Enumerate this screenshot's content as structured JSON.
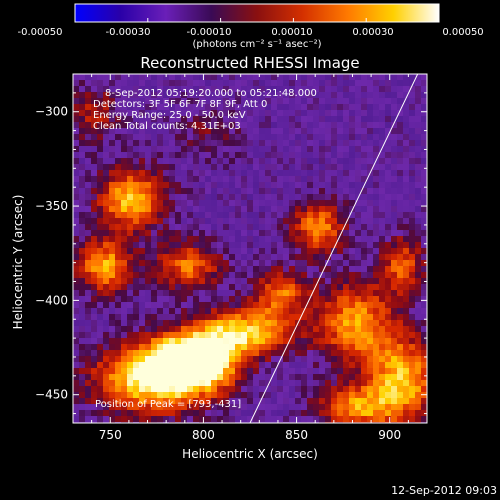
{
  "chart_data": {
    "type": "heatmap",
    "title": "Reconstructed RHESSI Image",
    "xlabel": "Heliocentric X (arcsec)",
    "ylabel": "Heliocentric Y (arcsec)",
    "xlim": [
      730,
      920
    ],
    "ylim": [
      -465,
      -280
    ],
    "xticks": [
      750,
      800,
      850,
      900
    ],
    "yticks": [
      -300,
      -350,
      -400,
      -450
    ],
    "colorbar": {
      "range": [
        -0.0005,
        0.0005
      ],
      "ticks": [
        "-0.00050",
        "-0.00030",
        "-0.00010",
        "0.00010",
        "0.00030",
        "0.00050"
      ],
      "units_label": "(photons cm⁻² s⁻¹ asec⁻²)",
      "colormap": [
        "#0000ff",
        "#2a00a8",
        "#6a1fb8",
        "#3a0a55",
        "#8a1010",
        "#d43000",
        "#ff7a00",
        "#ffd000",
        "#ffffff"
      ]
    },
    "info_lines": [
      "8-Sep-2012 05:19:20.000 to 05:21:48.000",
      "Detectors: 3F 5F 6F 7F 8F 9F, Att 0",
      "Energy Range: 25.0 - 50.0 keV",
      "Clean    Total counts: 4.31E+03"
    ],
    "peak_label": "Position of Peak = [793,-431]",
    "peak": {
      "x": 793,
      "y": -431
    },
    "limb_line": [
      [
        825,
        -465
      ],
      [
        915,
        -280
      ]
    ],
    "bright_regions": [
      {
        "x": 793,
        "y": -431,
        "intensity": 1.0,
        "rx": 22,
        "ry": 14
      },
      {
        "x": 770,
        "y": -440,
        "intensity": 0.7,
        "rx": 30,
        "ry": 18
      },
      {
        "x": 820,
        "y": -415,
        "intensity": 0.65,
        "rx": 25,
        "ry": 12
      },
      {
        "x": 760,
        "y": -345,
        "intensity": 0.6,
        "rx": 18,
        "ry": 16
      },
      {
        "x": 745,
        "y": -380,
        "intensity": 0.55,
        "rx": 15,
        "ry": 14
      },
      {
        "x": 790,
        "y": -380,
        "intensity": 0.45,
        "rx": 18,
        "ry": 12
      },
      {
        "x": 860,
        "y": -360,
        "intensity": 0.5,
        "rx": 14,
        "ry": 14
      },
      {
        "x": 840,
        "y": -395,
        "intensity": 0.45,
        "rx": 14,
        "ry": 12
      },
      {
        "x": 880,
        "y": -410,
        "intensity": 0.55,
        "rx": 20,
        "ry": 20
      },
      {
        "x": 905,
        "y": -440,
        "intensity": 0.6,
        "rx": 18,
        "ry": 22
      },
      {
        "x": 880,
        "y": -455,
        "intensity": 0.5,
        "rx": 20,
        "ry": 12
      },
      {
        "x": 905,
        "y": -380,
        "intensity": 0.4,
        "rx": 12,
        "ry": 15
      },
      {
        "x": 740,
        "y": -300,
        "intensity": 0.3,
        "rx": 12,
        "ry": 14
      },
      {
        "x": 800,
        "y": -310,
        "intensity": 0.15,
        "rx": 20,
        "ry": 15
      }
    ]
  },
  "footer_timestamp": "12-Sep-2012 09:03"
}
